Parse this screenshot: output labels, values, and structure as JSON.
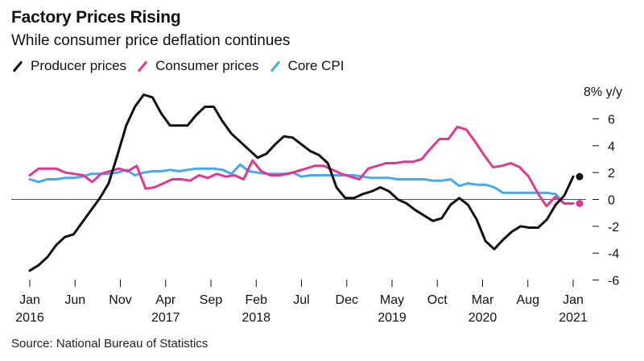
{
  "chart_data": {
    "type": "line",
    "title": "Factory Prices Rising",
    "subtitle": "While consumer price deflation continues",
    "ylabel": "8% y/y",
    "source": "Source: National Bureau of Statistics",
    "ylim": [
      -6,
      8
    ],
    "yticks": [
      {
        "value": 6,
        "label": "6"
      },
      {
        "value": 4,
        "label": "4"
      },
      {
        "value": 2,
        "label": "2"
      },
      {
        "value": 0,
        "label": "0"
      },
      {
        "value": -2,
        "label": "-2"
      },
      {
        "value": -4,
        "label": "-4"
      },
      {
        "value": -6,
        "label": "-6"
      }
    ],
    "xlim": [
      0,
      60
    ],
    "xticks": [
      {
        "index": 0,
        "label": "Jan",
        "year": "2016"
      },
      {
        "index": 5,
        "label": "Jun",
        "year": ""
      },
      {
        "index": 10,
        "label": "Nov",
        "year": ""
      },
      {
        "index": 15,
        "label": "Apr",
        "year": "2017"
      },
      {
        "index": 20,
        "label": "Sep",
        "year": ""
      },
      {
        "index": 25,
        "label": "Feb",
        "year": "2018"
      },
      {
        "index": 30,
        "label": "Jul",
        "year": ""
      },
      {
        "index": 35,
        "label": "Dec",
        "year": ""
      },
      {
        "index": 40,
        "label": "May",
        "year": "2019"
      },
      {
        "index": 45,
        "label": "Oct",
        "year": ""
      },
      {
        "index": 50,
        "label": "Mar",
        "year": "2020"
      },
      {
        "index": 55,
        "label": "Aug",
        "year": ""
      },
      {
        "index": 60,
        "label": "Jan",
        "year": "2021"
      }
    ],
    "series": [
      {
        "name": "Producer prices",
        "color": "#111111",
        "end_marker": true,
        "values": [
          -5.3,
          -4.9,
          -4.3,
          -3.4,
          -2.8,
          -2.6,
          -1.7,
          -0.8,
          0.1,
          1.2,
          3.3,
          5.5,
          6.9,
          7.8,
          7.6,
          6.4,
          5.5,
          5.5,
          5.5,
          6.3,
          6.9,
          6.9,
          5.8,
          4.9,
          4.3,
          3.7,
          3.1,
          3.4,
          4.1,
          4.7,
          4.6,
          4.1,
          3.6,
          3.3,
          2.7,
          0.9,
          0.1,
          0.1,
          0.4,
          0.6,
          0.9,
          0.6,
          0.0,
          -0.3,
          -0.8,
          -1.2,
          -1.6,
          -1.4,
          -0.4,
          0.1,
          -0.4,
          -1.5,
          -3.1,
          -3.7,
          -3.0,
          -2.4,
          -2.0,
          -2.1,
          -2.1,
          -1.5,
          -0.4,
          0.3,
          1.7
        ]
      },
      {
        "name": "Consumer prices",
        "color": "#e0388e",
        "end_marker": true,
        "values": [
          1.8,
          2.3,
          2.3,
          2.3,
          2.0,
          1.9,
          1.8,
          1.3,
          1.9,
          2.1,
          2.3,
          2.1,
          2.5,
          0.8,
          0.9,
          1.2,
          1.5,
          1.5,
          1.4,
          1.8,
          1.6,
          1.9,
          1.7,
          1.8,
          1.5,
          2.9,
          2.1,
          1.8,
          1.8,
          1.9,
          2.1,
          2.3,
          2.5,
          2.5,
          2.2,
          1.9,
          1.7,
          1.5,
          2.3,
          2.5,
          2.7,
          2.7,
          2.8,
          2.8,
          3.0,
          3.8,
          4.5,
          4.5,
          5.4,
          5.2,
          4.3,
          3.3,
          2.4,
          2.5,
          2.7,
          2.4,
          1.7,
          0.5,
          -0.5,
          0.2,
          -0.3,
          -0.3
        ]
      },
      {
        "name": "Core CPI",
        "color": "#48a8ee",
        "end_marker": false,
        "values": [
          1.5,
          1.3,
          1.5,
          1.5,
          1.6,
          1.6,
          1.7,
          1.9,
          1.9,
          1.9,
          2.0,
          2.2,
          1.8,
          2.0,
          2.1,
          2.1,
          2.2,
          2.1,
          2.2,
          2.3,
          2.3,
          2.3,
          2.2,
          1.9,
          2.6,
          2.1,
          2.0,
          1.9,
          1.9,
          1.9,
          2.0,
          1.7,
          1.8,
          1.8,
          1.8,
          1.8,
          1.8,
          1.8,
          1.7,
          1.6,
          1.6,
          1.6,
          1.5,
          1.5,
          1.5,
          1.5,
          1.4,
          1.4,
          1.5,
          1.0,
          1.2,
          1.1,
          1.1,
          0.9,
          0.5,
          0.5,
          0.5,
          0.5,
          0.5,
          0.5,
          0.4,
          -0.3,
          -0.3
        ]
      }
    ]
  }
}
